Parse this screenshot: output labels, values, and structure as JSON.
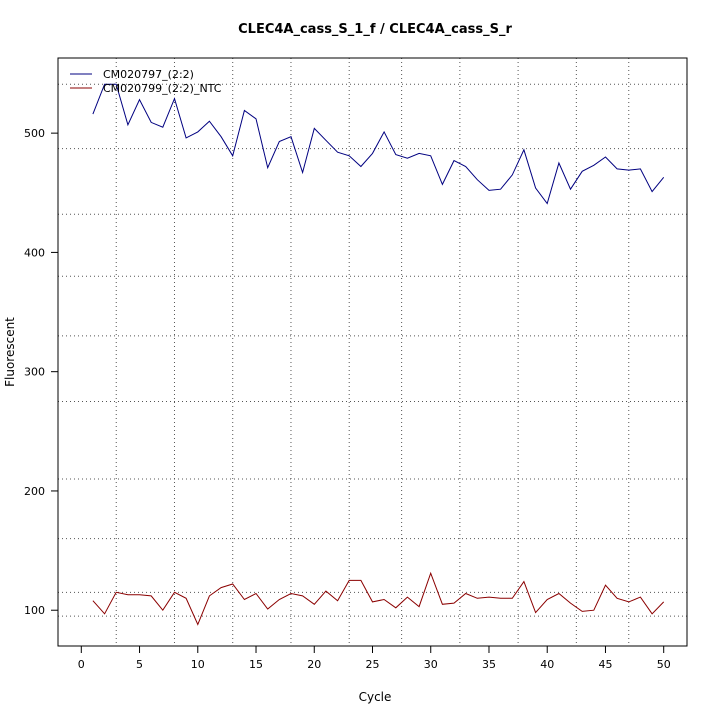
{
  "chart_data": {
    "type": "line",
    "title": "CLEC4A_cass_S_1_f / CLEC4A_cass_S_r",
    "xlabel": "Cycle",
    "ylabel": "Fluorescent",
    "xlim": [
      -2,
      52
    ],
    "ylim": [
      70,
      563
    ],
    "x_ticks": [
      0,
      5,
      10,
      15,
      20,
      25,
      30,
      35,
      40,
      45,
      50
    ],
    "y_ticks": [
      100,
      200,
      300,
      400,
      500
    ],
    "grid": true,
    "grid_style": "dotted",
    "v_grid": [
      3,
      8,
      13,
      18,
      23,
      27.5,
      32.5,
      37.5,
      42.5,
      47
    ],
    "h_grid": [
      95,
      115,
      160,
      210,
      275,
      330,
      380,
      432,
      487,
      541
    ],
    "legend_position": "top-left",
    "x": [
      1,
      2,
      3,
      4,
      5,
      6,
      7,
      8,
      9,
      10,
      11,
      12,
      13,
      14,
      15,
      16,
      17,
      18,
      19,
      20,
      21,
      22,
      23,
      24,
      25,
      26,
      27,
      28,
      29,
      30,
      31,
      32,
      33,
      34,
      35,
      36,
      37,
      38,
      39,
      40,
      41,
      42,
      43,
      44,
      45,
      46,
      47,
      48,
      49,
      50
    ],
    "series": [
      {
        "name": "CM020797_(2:2)",
        "color": "#000080",
        "values": [
          516,
          541,
          541,
          507,
          528,
          509,
          505,
          529,
          496,
          501,
          510,
          497,
          481,
          519,
          512,
          471,
          493,
          497,
          467,
          504,
          494,
          484,
          481,
          472,
          483,
          501,
          482,
          479,
          483,
          481,
          457,
          477,
          472,
          461,
          452,
          453,
          465,
          486,
          454,
          441,
          475,
          453,
          468,
          473,
          480,
          470,
          469,
          470,
          451,
          463
        ]
      },
      {
        "name": "CM020799_(2:2)_NTC",
        "color": "#8B0000",
        "values": [
          108,
          97,
          115,
          113,
          113,
          112,
          100,
          115,
          110,
          88,
          112,
          119,
          122,
          109,
          114,
          101,
          109,
          114,
          112,
          105,
          116,
          108,
          125,
          125,
          107,
          109,
          102,
          111,
          103,
          131,
          105,
          106,
          114,
          110,
          111,
          110,
          110,
          124,
          98,
          109,
          114,
          106,
          99,
          100,
          121,
          110,
          107,
          111,
          97,
          107
        ]
      }
    ]
  }
}
